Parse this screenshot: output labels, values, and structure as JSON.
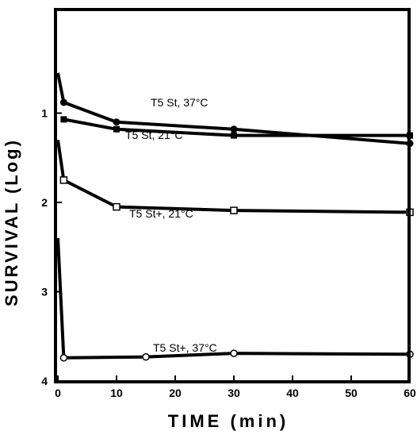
{
  "chart_data": {
    "type": "line",
    "xlabel": "TIME (min)",
    "ylabel": "SURVIVAL (Log)",
    "xlim": [
      0,
      60
    ],
    "ylim": [
      0.5,
      4
    ],
    "y_axis_inverted": true,
    "x_ticks": [
      0,
      10,
      20,
      30,
      40,
      50,
      60
    ],
    "y_ticks": [
      1,
      2,
      3,
      4
    ],
    "grid": false,
    "legend": "none",
    "series": [
      {
        "name": "T5 St,  37°C",
        "marker": "filled-circle",
        "x": [
          0,
          1,
          10,
          30,
          60
        ],
        "y": [
          0.55,
          0.88,
          1.1,
          1.18,
          1.34
        ]
      },
      {
        "name": "T5 St,  21°C",
        "marker": "filled-square",
        "x": [
          1,
          10,
          30,
          60
        ],
        "y": [
          1.07,
          1.18,
          1.25,
          1.25
        ]
      },
      {
        "name": "T5 St+,  21°C",
        "marker": "open-square",
        "x": [
          0,
          1,
          10,
          30,
          60
        ],
        "y": [
          1.3,
          1.75,
          2.05,
          2.09,
          2.11
        ]
      },
      {
        "name": "T5 St+,  37°C",
        "marker": "open-circle",
        "x": [
          0,
          1,
          15,
          30,
          60
        ],
        "y": [
          2.4,
          3.74,
          3.73,
          3.69,
          3.7
        ]
      }
    ]
  }
}
